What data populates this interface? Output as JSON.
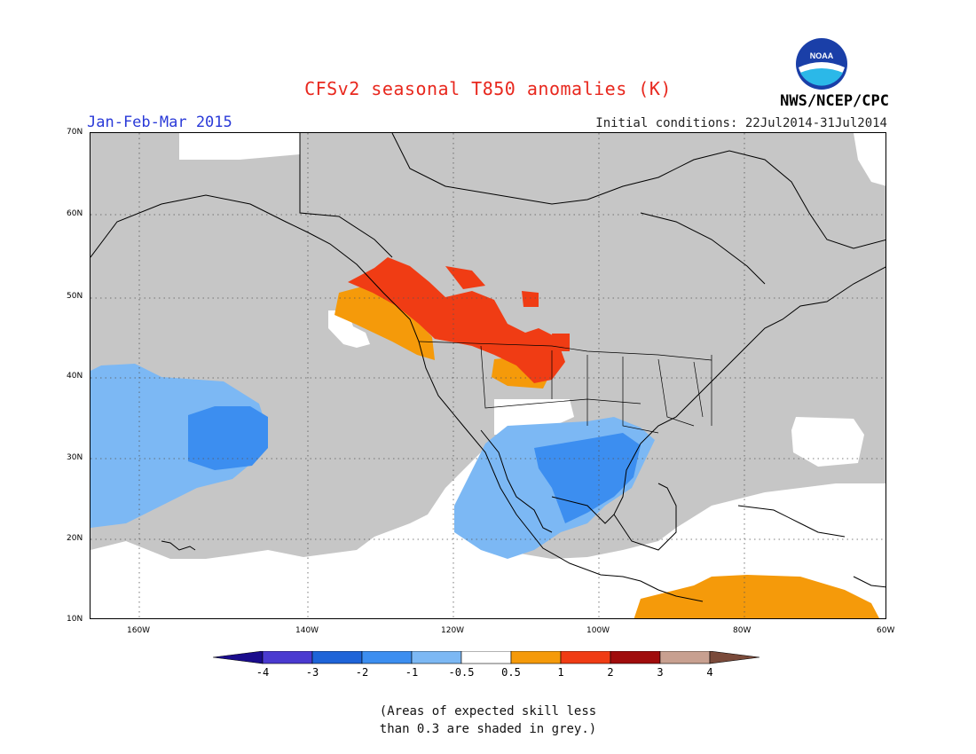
{
  "header": {
    "title": "CFSv2 seasonal T850 anomalies (K)",
    "period": "Jan-Feb-Mar 2015",
    "initial_conditions": "Initial conditions: 22Jul2014-31Jul2014",
    "org": "NWS/NCEP/CPC",
    "logo_text": "NOAA"
  },
  "map": {
    "lat_labels": [
      "70N",
      "60N",
      "50N",
      "40N",
      "30N",
      "20N",
      "10N"
    ],
    "lon_labels": [
      "160W",
      "140W",
      "120W",
      "100W",
      "80W",
      "60W"
    ],
    "region": "North America / NE Pacific",
    "extent": {
      "lon": [
        -170,
        -60
      ],
      "lat": [
        10,
        70
      ]
    }
  },
  "colorbar": {
    "labels": [
      "-4",
      "-3",
      "-2",
      "-1",
      "-0.5",
      "0.5",
      "1",
      "2",
      "3",
      "4"
    ],
    "colors": [
      "#1a0c8c",
      "#4a3ad0",
      "#1e64d8",
      "#3c8ef0",
      "#7cb8f4",
      "#ffffff",
      "#f59a0a",
      "#f03c14",
      "#a00c0c",
      "#c8a090",
      "#7a4a3a"
    ]
  },
  "legend_colors": {
    "grey": "#c6c6c6",
    "light_blue": "#7cb8f4",
    "mid_blue": "#3c8ef0",
    "orange": "#f59a0a",
    "red": "#f03c14"
  },
  "note": {
    "line1": "(Areas of expected skill less",
    "line2": "than 0.3 are shaded in grey.)"
  }
}
